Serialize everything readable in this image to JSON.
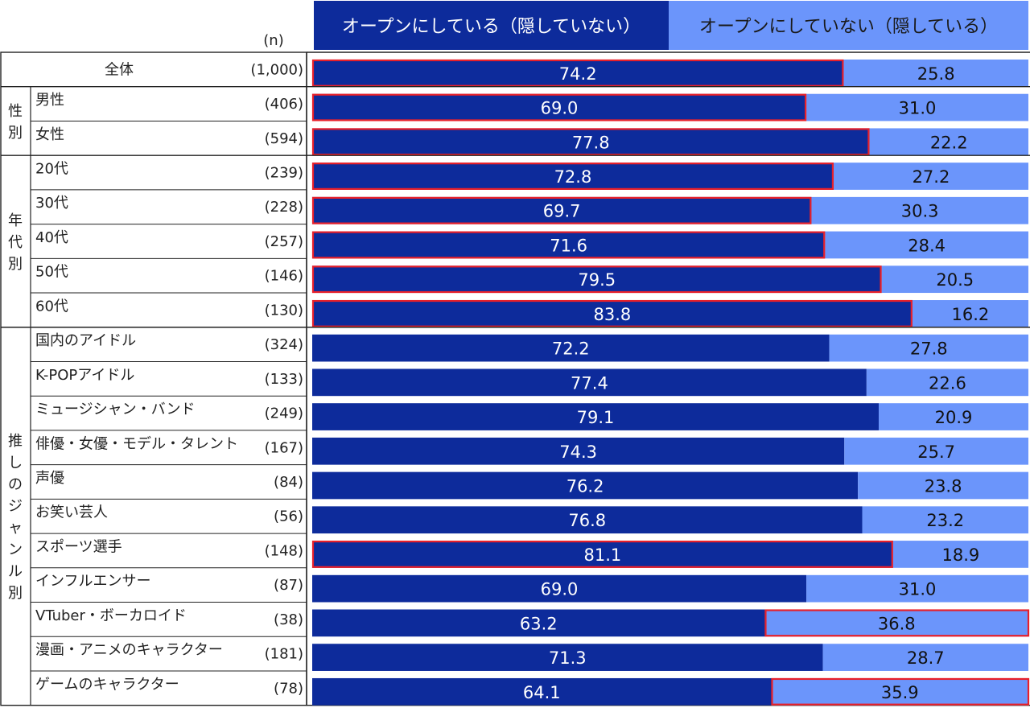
{
  "chart_data": {
    "type": "bar",
    "stacked": true,
    "percent": true,
    "n_header": "(n)",
    "series": [
      {
        "name": "オープンにしている（隠していない）",
        "color": "#0d2b9b"
      },
      {
        "name": "オープンにしていない（隠している）",
        "color": "#6b95fb"
      }
    ],
    "groups": [
      {
        "label": "",
        "rows": [
          {
            "label": "全体",
            "n": "(1,000)",
            "values": [
              74.2,
              25.8
            ],
            "highlight": 0
          }
        ]
      },
      {
        "label": "性別",
        "rows": [
          {
            "label": "男性",
            "n": "(406)",
            "values": [
              69.0,
              31.0
            ],
            "highlight": 0
          },
          {
            "label": "女性",
            "n": "(594)",
            "values": [
              77.8,
              22.2
            ],
            "highlight": 0
          }
        ]
      },
      {
        "label": "年代別",
        "rows": [
          {
            "label": "20代",
            "n": "(239)",
            "values": [
              72.8,
              27.2
            ],
            "highlight": 0
          },
          {
            "label": "30代",
            "n": "(228)",
            "values": [
              69.7,
              30.3
            ],
            "highlight": 0
          },
          {
            "label": "40代",
            "n": "(257)",
            "values": [
              71.6,
              28.4
            ],
            "highlight": 0
          },
          {
            "label": "50代",
            "n": "(146)",
            "values": [
              79.5,
              20.5
            ],
            "highlight": 0
          },
          {
            "label": "60代",
            "n": "(130)",
            "values": [
              83.8,
              16.2
            ],
            "highlight": 0
          }
        ]
      },
      {
        "label": "推しのジャンル別",
        "rows": [
          {
            "label": "国内のアイドル",
            "n": "(324)",
            "values": [
              72.2,
              27.8
            ],
            "highlight": null
          },
          {
            "label": "K-POPアイドル",
            "n": "(133)",
            "values": [
              77.4,
              22.6
            ],
            "highlight": null
          },
          {
            "label": "ミュージシャン・バンド",
            "n": "(249)",
            "values": [
              79.1,
              20.9
            ],
            "highlight": null
          },
          {
            "label": "俳優・女優・モデル・タレント",
            "n": "(167)",
            "values": [
              74.3,
              25.7
            ],
            "highlight": null
          },
          {
            "label": "声優",
            "n": "(84)",
            "values": [
              76.2,
              23.8
            ],
            "highlight": null
          },
          {
            "label": "お笑い芸人",
            "n": "(56)",
            "values": [
              76.8,
              23.2
            ],
            "highlight": null
          },
          {
            "label": "スポーツ選手",
            "n": "(148)",
            "values": [
              81.1,
              18.9
            ],
            "highlight": 0
          },
          {
            "label": "インフルエンサー",
            "n": "(87)",
            "values": [
              69.0,
              31.0
            ],
            "highlight": null
          },
          {
            "label": "VTuber・ボーカロイド",
            "n": "(38)",
            "values": [
              63.2,
              36.8
            ],
            "highlight": 1
          },
          {
            "label": "漫画・アニメのキャラクター",
            "n": "(181)",
            "values": [
              71.3,
              28.7
            ],
            "highlight": null
          },
          {
            "label": "ゲームのキャラクター",
            "n": "(78)",
            "values": [
              64.1,
              35.9
            ],
            "highlight": 1
          }
        ]
      }
    ],
    "highlight_color": "#e8202a",
    "grid_color": "#222222"
  }
}
